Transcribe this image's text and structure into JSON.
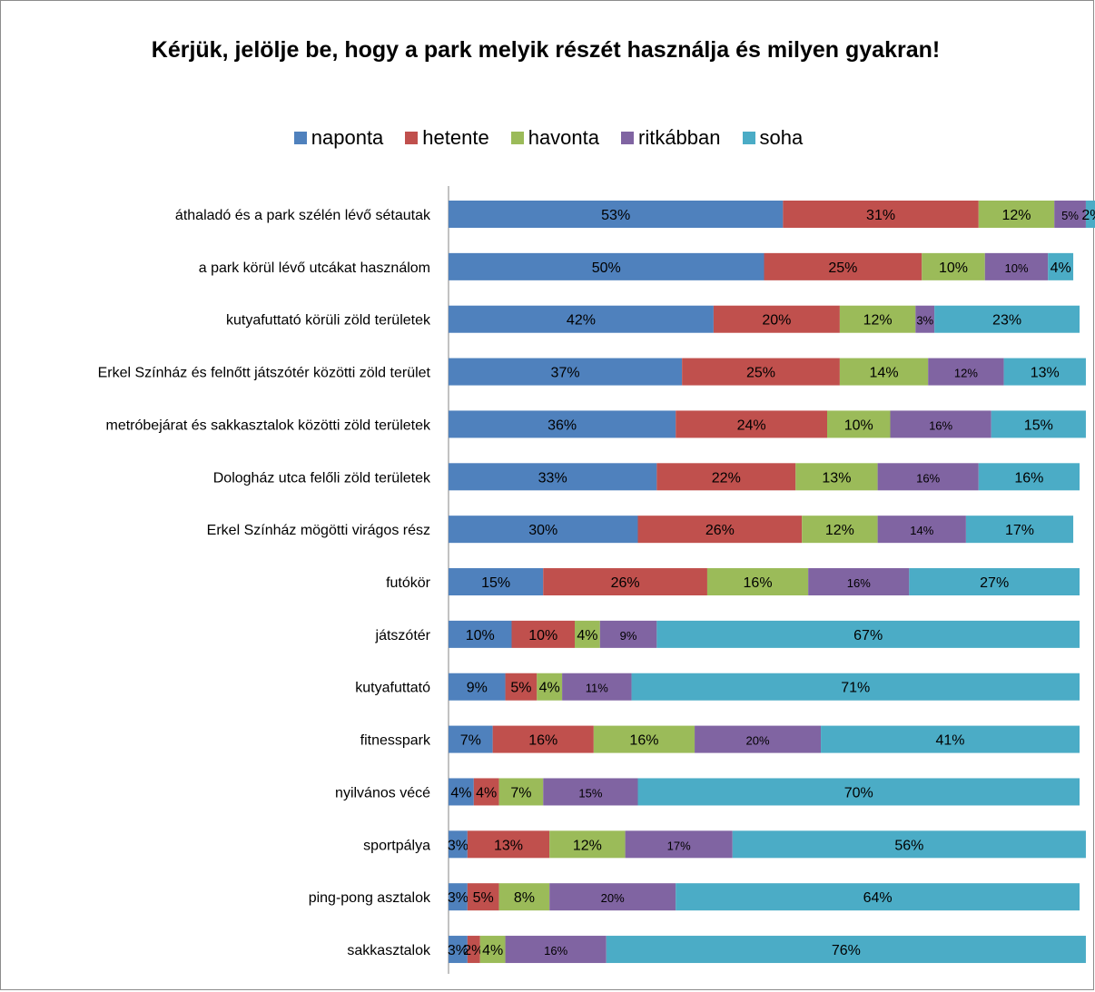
{
  "chart_data": {
    "type": "bar",
    "orientation": "horizontal",
    "stacked": true,
    "title": "Kérjük, jelölje be, hogy a park melyik részét használja és milyen gyakran!",
    "legend_position": "top",
    "grid": false,
    "xlim": [
      0,
      100
    ],
    "categories": [
      "áthaladó és a park szélén lévő sétautak",
      "a park körül lévő utcákat használom",
      "kutyafuttató körüli zöld területek",
      "Erkel Színház és felnőtt játszótér közötti zöld terület",
      "metróbejárat és sakkasztalok közötti zöld területek",
      "Dologház utca felőli zöld területek",
      "Erkel Színház mögötti virágos rész",
      "futókör",
      "játszótér",
      "kutyafuttató",
      "fitnesspark",
      "nyilvános vécé",
      "sportpálya",
      "ping-pong asztalok",
      "sakkasztalok"
    ],
    "series": [
      {
        "name": "naponta",
        "color": "#4f81bd",
        "values": [
          53,
          50,
          42,
          37,
          36,
          33,
          30,
          15,
          10,
          9,
          7,
          4,
          3,
          3,
          3
        ]
      },
      {
        "name": "hetente",
        "color": "#c0504d",
        "values": [
          31,
          25,
          20,
          25,
          24,
          22,
          26,
          26,
          10,
          5,
          16,
          4,
          13,
          5,
          2
        ]
      },
      {
        "name": "havonta",
        "color": "#9bbb59",
        "values": [
          12,
          10,
          12,
          14,
          10,
          13,
          12,
          16,
          4,
          4,
          16,
          7,
          12,
          8,
          4
        ]
      },
      {
        "name": "ritkábban",
        "color": "#8064a2",
        "values": [
          5,
          10,
          3,
          12,
          16,
          16,
          14,
          16,
          9,
          11,
          20,
          15,
          17,
          20,
          16
        ]
      },
      {
        "name": "soha",
        "color": "#4bacc6",
        "values": [
          2,
          4,
          23,
          13,
          15,
          16,
          17,
          27,
          67,
          71,
          41,
          70,
          56,
          64,
          76
        ]
      }
    ]
  }
}
